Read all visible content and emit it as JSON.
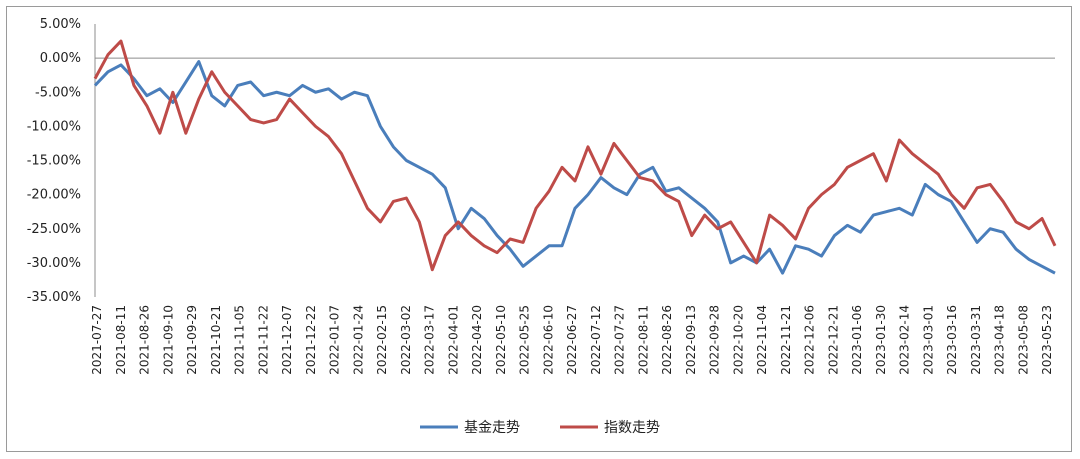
{
  "chart_data": {
    "type": "line",
    "title": "",
    "xlabel": "",
    "ylabel": "",
    "ylim": [
      -35,
      5
    ],
    "y_ticks": [
      "5.00%",
      "0.00%",
      "-5.00%",
      "-10.00%",
      "-15.00%",
      "-20.00%",
      "-25.00%",
      "-30.00%",
      "-35.00%"
    ],
    "y_tick_values": [
      5,
      0,
      -5,
      -10,
      -15,
      -20,
      -25,
      -30,
      -35
    ],
    "x_ticks": [
      "2021-07-27",
      "2021-08-11",
      "2021-08-26",
      "2021-09-10",
      "2021-09-29",
      "2021-10-21",
      "2021-11-05",
      "2021-11-22",
      "2021-12-07",
      "2021-12-22",
      "2022-01-07",
      "2022-01-24",
      "2022-02-15",
      "2022-03-02",
      "2022-03-17",
      "2022-04-01",
      "2022-04-20",
      "2022-05-10",
      "2022-05-25",
      "2022-06-10",
      "2022-06-27",
      "2022-07-12",
      "2022-07-27",
      "2022-08-11",
      "2022-08-26",
      "2022-09-13",
      "2022-09-28",
      "2022-10-20",
      "2022-11-04",
      "2022-11-21",
      "2022-12-06",
      "2022-12-21",
      "2023-01-06",
      "2023-01-30",
      "2023-02-14",
      "2023-03-01",
      "2023-03-16",
      "2023-03-31",
      "2023-04-18",
      "2023-05-08",
      "2023-05-23"
    ],
    "legend_position": "bottom",
    "grid": false,
    "series": [
      {
        "name": "基金走势",
        "color": "#4a7ebb",
        "values": [
          -4.0,
          -2.0,
          -1.0,
          -3.0,
          -5.5,
          -4.5,
          -6.5,
          -3.5,
          -0.5,
          -5.5,
          -7.0,
          -4.0,
          -3.5,
          -5.5,
          -5.0,
          -5.5,
          -4.0,
          -5.0,
          -4.5,
          -6.0,
          -5.0,
          -5.5,
          -10.0,
          -13.0,
          -15.0,
          -16.0,
          -17.0,
          -19.0,
          -25.0,
          -22.0,
          -23.5,
          -26.0,
          -28.0,
          -30.5,
          -29.0,
          -27.5,
          -27.5,
          -22.0,
          -20.0,
          -17.5,
          -19.0,
          -20.0,
          -17.0,
          -16.0,
          -19.5,
          -19.0,
          -20.5,
          -22.0,
          -24.0,
          -30.0,
          -29.0,
          -30.0,
          -28.0,
          -31.5,
          -27.5,
          -28.0,
          -29.0,
          -26.0,
          -24.5,
          -25.5,
          -23.0,
          -22.5,
          -22.0,
          -23.0,
          -18.5,
          -20.0,
          -21.0,
          -24.0,
          -27.0,
          -25.0,
          -25.5,
          -28.0,
          -29.5,
          -30.5,
          -31.5
        ]
      },
      {
        "name": "指数走势",
        "color": "#be4b48",
        "values": [
          -3.0,
          0.5,
          2.5,
          -4.0,
          -7.0,
          -11.0,
          -5.0,
          -11.0,
          -6.0,
          -2.0,
          -5.0,
          -7.0,
          -9.0,
          -9.5,
          -9.0,
          -6.0,
          -8.0,
          -10.0,
          -11.5,
          -14.0,
          -18.0,
          -22.0,
          -24.0,
          -21.0,
          -20.5,
          -24.0,
          -31.0,
          -26.0,
          -24.0,
          -26.0,
          -27.5,
          -28.5,
          -26.5,
          -27.0,
          -22.0,
          -19.5,
          -16.0,
          -18.0,
          -13.0,
          -17.0,
          -12.5,
          -15.0,
          -17.5,
          -18.0,
          -20.0,
          -21.0,
          -26.0,
          -23.0,
          -25.0,
          -24.0,
          -27.0,
          -30.0,
          -23.0,
          -24.5,
          -26.5,
          -22.0,
          -20.0,
          -18.5,
          -16.0,
          -15.0,
          -14.0,
          -18.0,
          -12.0,
          -14.0,
          -15.5,
          -17.0,
          -20.0,
          -22.0,
          -19.0,
          -18.5,
          -21.0,
          -24.0,
          -25.0,
          -23.5,
          -27.5
        ]
      }
    ]
  }
}
